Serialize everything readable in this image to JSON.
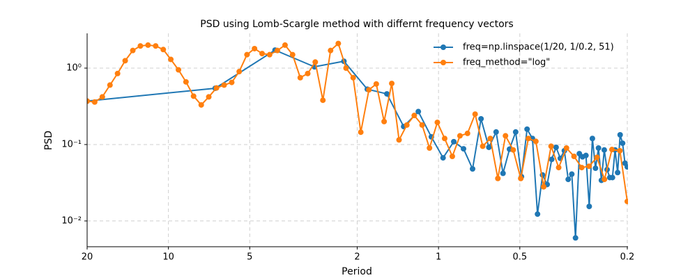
{
  "chart_data": {
    "type": "line",
    "title": "PSD using Lomb-Scargle method with differnt frequency vectors",
    "x_label": "Period",
    "y_label": "PSD",
    "xscale": "log",
    "yscale": "log",
    "xlim": [
      20,
      0.2
    ],
    "xticks": [
      20,
      10,
      5,
      2,
      1,
      0.5,
      0.2
    ],
    "ylim": [
      0.0046,
      2.85
    ],
    "yticks": [
      {
        "value": 1,
        "label": "10⁰"
      },
      {
        "value": 0.1,
        "label": "10⁻¹"
      },
      {
        "value": 0.01,
        "label": "10⁻²"
      }
    ],
    "grid": true,
    "legend": "upper right",
    "series": [
      {
        "name": "freq=np.linspace(1/20, 1/0.2, 51)",
        "color": "#1f77b4",
        "x": [
          20,
          6.71,
          4.03,
          2.88,
          2.24,
          1.835,
          1.553,
          1.346,
          1.188,
          1.063,
          0.962,
          0.878,
          0.808,
          0.748,
          0.696,
          0.651,
          0.612,
          0.577,
          0.546,
          0.518,
          0.493,
          0.47,
          0.449,
          0.43,
          0.412,
          0.396,
          0.381,
          0.367,
          0.354,
          0.342,
          0.331,
          0.321,
          0.311,
          0.301,
          0.293,
          0.2845,
          0.2767,
          0.2693,
          0.2623,
          0.2557,
          0.2494,
          0.2434,
          0.2376,
          0.2322,
          0.227,
          0.222,
          0.2172,
          0.2126,
          0.2082,
          0.204,
          0.2
        ],
        "values": [
          0.37,
          0.545,
          1.72,
          1.04,
          1.23,
          0.53,
          0.46,
          0.172,
          0.27,
          0.126,
          0.067,
          0.109,
          0.088,
          0.048,
          0.217,
          0.092,
          0.146,
          0.042,
          0.087,
          0.146,
          0.038,
          0.159,
          0.12,
          0.0123,
          0.04,
          0.03,
          0.064,
          0.092,
          0.066,
          0.083,
          0.035,
          0.041,
          0.006,
          0.076,
          0.069,
          0.072,
          0.0155,
          0.12,
          0.049,
          0.09,
          0.034,
          0.085,
          0.047,
          0.037,
          0.037,
          0.085,
          0.043,
          0.134,
          0.104,
          0.057,
          0.051
        ]
      },
      {
        "name": "freq_method=\"log\"",
        "color": "#ff7f0e",
        "x": [
          20,
          18.75,
          17.57,
          16.46,
          15.43,
          14.46,
          13.55,
          12.7,
          11.9,
          11.15,
          10.45,
          9.8,
          9.18,
          8.61,
          8.07,
          7.56,
          7.09,
          6.64,
          6.22,
          5.83,
          5.47,
          5.12,
          4.8,
          4.5,
          4.22,
          3.95,
          3.7,
          3.47,
          3.25,
          3.05,
          2.86,
          2.68,
          2.51,
          2.35,
          2.2,
          2.07,
          1.94,
          1.81,
          1.7,
          1.59,
          1.49,
          1.4,
          1.31,
          1.23,
          1.15,
          1.08,
          1.01,
          0.949,
          0.889,
          0.833,
          0.781,
          0.732,
          0.686,
          0.643,
          0.603,
          0.565,
          0.529,
          0.496,
          0.465,
          0.436,
          0.408,
          0.383,
          0.359,
          0.336,
          0.315,
          0.295,
          0.277,
          0.259,
          0.243,
          0.228,
          0.213,
          0.2
        ],
        "values": [
          0.37,
          0.36,
          0.42,
          0.6,
          0.85,
          1.25,
          1.7,
          1.95,
          2.0,
          1.95,
          1.75,
          1.3,
          0.95,
          0.66,
          0.43,
          0.33,
          0.42,
          0.55,
          0.6,
          0.65,
          0.9,
          1.5,
          1.8,
          1.55,
          1.5,
          1.7,
          2.0,
          1.5,
          0.75,
          0.85,
          1.2,
          0.38,
          1.7,
          2.1,
          1.0,
          0.75,
          0.145,
          0.52,
          0.62,
          0.2,
          0.63,
          0.115,
          0.18,
          0.24,
          0.18,
          0.09,
          0.195,
          0.12,
          0.07,
          0.13,
          0.14,
          0.25,
          0.095,
          0.12,
          0.036,
          0.13,
          0.085,
          0.036,
          0.12,
          0.11,
          0.028,
          0.095,
          0.05,
          0.09,
          0.07,
          0.05,
          0.052,
          0.068,
          0.035,
          0.086,
          0.083,
          0.018
        ]
      }
    ]
  }
}
